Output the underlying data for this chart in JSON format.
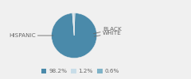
{
  "labels": [
    "HISPANIC",
    "BLACK",
    "WHITE"
  ],
  "values": [
    98.2,
    1.2,
    0.6
  ],
  "colors": [
    "#4a8aaa",
    "#c8dde8",
    "#7fb3c8"
  ],
  "legend_colors": [
    "#4a8aaa",
    "#c8dde8",
    "#7fb3c8"
  ],
  "legend_labels": [
    "98.2%",
    "1.2%",
    "0.6%"
  ],
  "bg_color": "#f0f0f0",
  "text_color": "#666666",
  "font_size": 5.2,
  "startangle": 88
}
